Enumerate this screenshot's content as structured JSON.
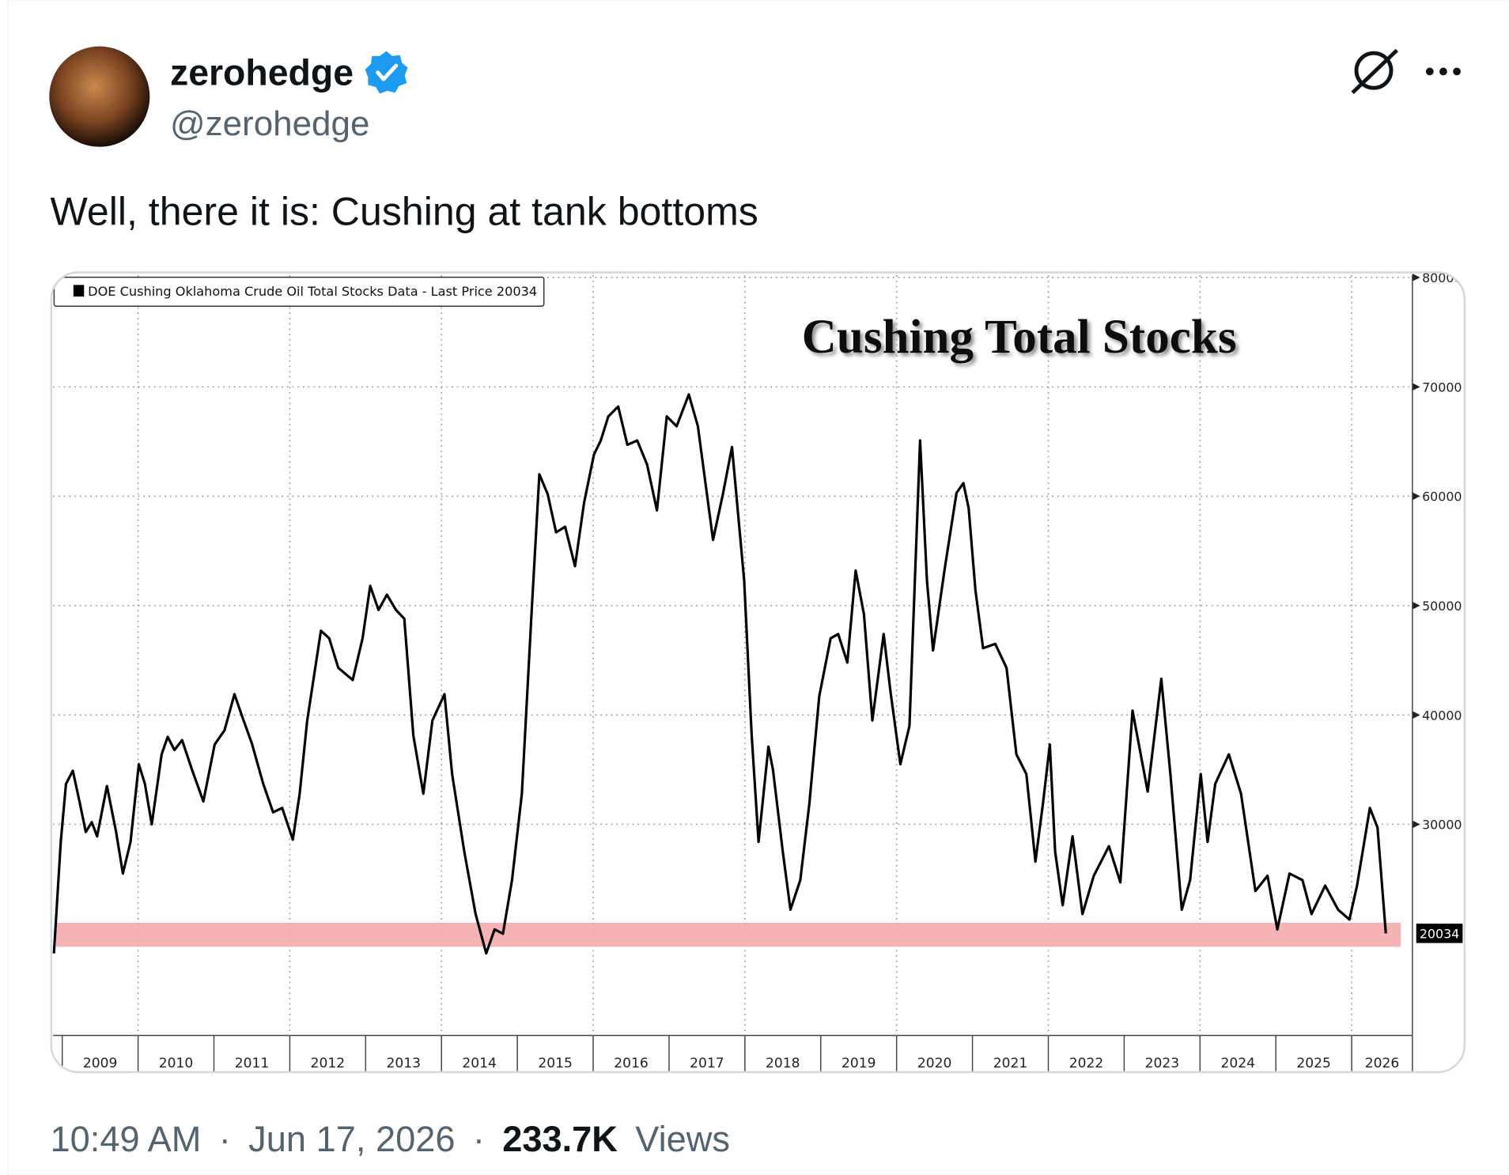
{
  "tweet": {
    "author": {
      "name": "zerohedge",
      "handle": "@zerohedge"
    },
    "text": "Well, there it is: Cushing at tank bottoms",
    "footer": {
      "time": "10:49 AM",
      "separator": "·",
      "date": "Jun 17, 2026",
      "views_count": "233.7K",
      "views_label": "Views"
    }
  },
  "chart_data": {
    "type": "line",
    "title": "Cushing Total Stocks",
    "legend_text": "DOE Cushing Oklahoma Crude Oil Total Stocks Data - Last Price 20034",
    "series": [
      {
        "name": "DOE Cushing Oklahoma Crude Oil Total Stocks Data",
        "color": "#000000",
        "x": [
          2008.89,
          2008.98,
          2009.05,
          2009.14,
          2009.23,
          2009.31,
          2009.39,
          2009.46,
          2009.59,
          2009.71,
          2009.8,
          2009.9,
          2010.01,
          2010.09,
          2010.18,
          2010.31,
          2010.39,
          2010.48,
          2010.58,
          2010.71,
          2010.86,
          2011.01,
          2011.14,
          2011.27,
          2011.37,
          2011.5,
          2011.65,
          2011.78,
          2011.9,
          2012.04,
          2012.13,
          2012.23,
          2012.41,
          2012.52,
          2012.64,
          2012.83,
          2012.96,
          2013.06,
          2013.17,
          2013.28,
          2013.4,
          2013.51,
          2013.63,
          2013.76,
          2013.88,
          2014.04,
          2014.14,
          2014.3,
          2014.45,
          2014.59,
          2014.7,
          2014.81,
          2014.93,
          2015.06,
          2015.19,
          2015.29,
          2015.4,
          2015.51,
          2015.63,
          2015.76,
          2015.88,
          2016.01,
          2016.1,
          2016.2,
          2016.33,
          2016.45,
          2016.58,
          2016.71,
          2016.84,
          2016.97,
          2017.1,
          2017.26,
          2017.38,
          2017.58,
          2017.71,
          2017.83,
          2017.99,
          2018.09,
          2018.18,
          2018.31,
          2018.37,
          2018.5,
          2018.6,
          2018.73,
          2018.85,
          2018.98,
          2019.13,
          2019.23,
          2019.35,
          2019.46,
          2019.57,
          2019.68,
          2019.83,
          2019.92,
          2020.05,
          2020.17,
          2020.31,
          2020.4,
          2020.48,
          2020.63,
          2020.79,
          2020.88,
          2020.95,
          2021.04,
          2021.14,
          2021.3,
          2021.45,
          2021.58,
          2021.71,
          2021.83,
          2021.93,
          2022.02,
          2022.09,
          2022.19,
          2022.32,
          2022.45,
          2022.6,
          2022.8,
          2022.95,
          2023.11,
          2023.31,
          2023.49,
          2023.61,
          2023.76,
          2023.87,
          2024.01,
          2024.1,
          2024.2,
          2024.38,
          2024.54,
          2024.73,
          2024.89,
          2025.02,
          2025.18,
          2025.35,
          2025.47,
          2025.65,
          2025.82,
          2025.97,
          2026.07,
          2026.24,
          2026.34,
          2026.45
        ],
        "values": [
          18200,
          28400,
          33700,
          34900,
          32000,
          29300,
          30200,
          28900,
          33500,
          29300,
          25500,
          28400,
          35500,
          33700,
          30000,
          36400,
          38000,
          36800,
          37700,
          35000,
          32100,
          37300,
          38600,
          41900,
          39900,
          37400,
          33700,
          31100,
          31500,
          28600,
          32800,
          39500,
          47700,
          47000,
          44300,
          43200,
          47000,
          51800,
          49600,
          51000,
          49600,
          48800,
          38100,
          32800,
          39500,
          41900,
          34600,
          27500,
          21800,
          18200,
          20400,
          20000,
          24900,
          32800,
          49600,
          62000,
          60200,
          56700,
          57200,
          53600,
          59400,
          63800,
          65100,
          67300,
          68200,
          64700,
          65100,
          62900,
          58700,
          67300,
          66400,
          69300,
          66400,
          56000,
          60200,
          64500,
          52300,
          38100,
          28400,
          37100,
          35000,
          27500,
          22200,
          24900,
          31900,
          41700,
          47000,
          47400,
          44800,
          53200,
          49200,
          39500,
          47400,
          42100,
          35500,
          39000,
          65100,
          52300,
          45900,
          53200,
          60300,
          61200,
          58900,
          51400,
          46100,
          46500,
          44300,
          36400,
          34600,
          26600,
          31900,
          37300,
          27500,
          22600,
          28900,
          21800,
          25300,
          28000,
          24700,
          40400,
          33000,
          43300,
          34600,
          22200,
          24900,
          34600,
          28400,
          33700,
          36400,
          32800,
          23900,
          25300,
          20400,
          25500,
          24900,
          21800,
          24400,
          22200,
          21300,
          24400,
          31500,
          29700,
          20034
        ]
      }
    ],
    "highlight": {
      "range": [
        18800,
        21000
      ],
      "color": "#f4a6a6"
    },
    "xlim": [
      2008.88,
      2026.8
    ],
    "xticks": [
      {
        "value": 2009,
        "label": "2009"
      },
      {
        "value": 2010,
        "label": "2010"
      },
      {
        "value": 2011,
        "label": "2011"
      },
      {
        "value": 2012,
        "label": "2012"
      },
      {
        "value": 2013,
        "label": "2013"
      },
      {
        "value": 2014,
        "label": "2014"
      },
      {
        "value": 2015,
        "label": "2015"
      },
      {
        "value": 2016,
        "label": "2016"
      },
      {
        "value": 2017,
        "label": "2017"
      },
      {
        "value": 2018,
        "label": "2018"
      },
      {
        "value": 2019,
        "label": "2019"
      },
      {
        "value": 2020,
        "label": "2020"
      },
      {
        "value": 2021,
        "label": "2021"
      },
      {
        "value": 2022,
        "label": "2022"
      },
      {
        "value": 2023,
        "label": "2023"
      },
      {
        "value": 2024,
        "label": "2024"
      },
      {
        "value": 2025,
        "label": "2025"
      },
      {
        "value": 2026,
        "label": "2026"
      }
    ],
    "ylim": [
      10700,
      80200
    ],
    "yticks": [
      30000,
      40000,
      50000,
      60000,
      70000,
      80000
    ],
    "grid": true
  }
}
